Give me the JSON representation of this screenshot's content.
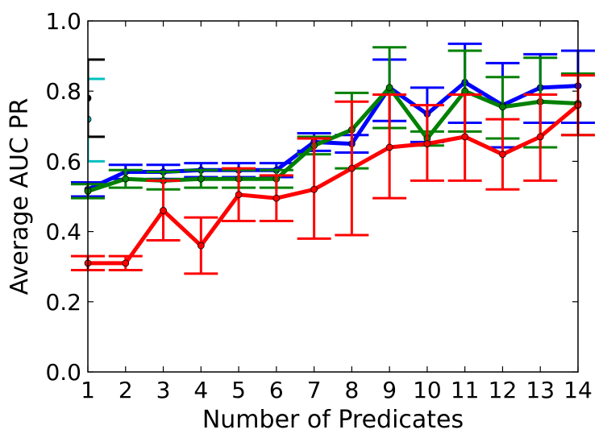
{
  "chart_data": {
    "type": "line",
    "xlabel": "Number of Predicates",
    "ylabel": "Average AUC PR",
    "xlim": [
      1,
      14
    ],
    "ylim": [
      0.0,
      1.0
    ],
    "x_ticks": [
      "1",
      "2",
      "3",
      "4",
      "5",
      "6",
      "7",
      "8",
      "9",
      "10",
      "11",
      "12",
      "13",
      "14"
    ],
    "y_ticks": [
      "0.0",
      "0.2",
      "0.4",
      "0.6",
      "0.8",
      "1.0"
    ],
    "grid": false,
    "legend": false,
    "series": [
      {
        "color": "#0000ff",
        "x": [
          1,
          2,
          3,
          4,
          5,
          6,
          7,
          8,
          9,
          10,
          11,
          12,
          13,
          14
        ],
        "values": [
          0.52,
          0.57,
          0.57,
          0.575,
          0.575,
          0.575,
          0.655,
          0.65,
          0.81,
          0.735,
          0.825,
          0.76,
          0.81,
          0.815
        ],
        "err_low": [
          0.5,
          0.55,
          0.55,
          0.555,
          0.555,
          0.555,
          0.63,
          0.625,
          0.715,
          0.655,
          0.71,
          0.64,
          0.71,
          0.71
        ],
        "err_high": [
          0.54,
          0.59,
          0.59,
          0.595,
          0.595,
          0.595,
          0.68,
          0.675,
          0.89,
          0.81,
          0.935,
          0.88,
          0.905,
          0.915
        ]
      },
      {
        "color": "#008000",
        "x": [
          1,
          2,
          3,
          4,
          5,
          6,
          7,
          8,
          9,
          10,
          11,
          12,
          13,
          14
        ],
        "values": [
          0.515,
          0.55,
          0.545,
          0.55,
          0.55,
          0.55,
          0.645,
          0.69,
          0.81,
          0.665,
          0.8,
          0.755,
          0.77,
          0.765
        ],
        "err_low": [
          0.495,
          0.525,
          0.52,
          0.525,
          0.525,
          0.525,
          0.62,
          0.58,
          0.695,
          0.645,
          0.685,
          0.665,
          0.64,
          0.675
        ],
        "err_high": [
          0.535,
          0.575,
          0.57,
          0.575,
          0.575,
          0.575,
          0.67,
          0.795,
          0.925,
          0.685,
          0.915,
          0.84,
          0.895,
          0.85
        ]
      },
      {
        "color": "#ff0000",
        "x": [
          1,
          2,
          3,
          4,
          5,
          6,
          7,
          8,
          9,
          10,
          11,
          12,
          13,
          14
        ],
        "values": [
          0.31,
          0.31,
          0.46,
          0.36,
          0.505,
          0.495,
          0.52,
          0.58,
          0.64,
          0.65,
          0.67,
          0.62,
          0.67,
          0.76
        ],
        "err_low": [
          0.29,
          0.29,
          0.375,
          0.28,
          0.43,
          0.43,
          0.38,
          0.39,
          0.495,
          0.545,
          0.545,
          0.52,
          0.545,
          0.675
        ],
        "err_high": [
          0.33,
          0.33,
          0.545,
          0.44,
          0.58,
          0.56,
          0.665,
          0.77,
          0.79,
          0.76,
          0.79,
          0.72,
          0.79,
          0.845
        ]
      }
    ],
    "offscale_markers": [
      {
        "color": "#00bfbf",
        "x": 1,
        "value": 0.72,
        "err_low": 0.6,
        "err_high": 0.835
      },
      {
        "color": "#000000",
        "x": 1,
        "value": 0.78,
        "err_low": 0.67,
        "err_high": 0.89
      }
    ]
  }
}
